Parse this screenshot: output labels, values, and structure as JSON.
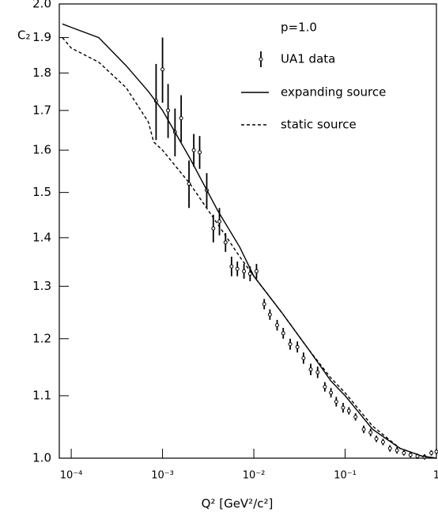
{
  "chart_data": {
    "type": "line",
    "annotation": "p=1.0",
    "ylabel": "C₂",
    "xlabel": "Q² [GeV²/c²]",
    "xscale": "log",
    "yscale": "log",
    "xlim": [
      7.4e-05,
      1
    ],
    "ylim": [
      1,
      2
    ],
    "xticks": [
      {
        "value": 0.0001,
        "label": "10⁻⁴"
      },
      {
        "value": 0.001,
        "label": "10⁻³"
      },
      {
        "value": 0.01,
        "label": "10⁻²"
      },
      {
        "value": 0.1,
        "label": "10⁻¹"
      },
      1
    ],
    "yticks": [
      {
        "value": 1,
        "label": "1.0"
      },
      1.1,
      1.2,
      1.3,
      1.4,
      1.5,
      1.6,
      1.7,
      1.8,
      1.9,
      {
        "value": 2,
        "label": "2.0"
      }
    ],
    "series": [
      {
        "name": "UA1 data",
        "color": "#000000",
        "marker": "circle",
        "x": [
          0.00085,
          0.001,
          0.00115,
          0.00137,
          0.0016,
          0.00195,
          0.0022,
          0.00255,
          0.00305,
          0.0036,
          0.0042,
          0.0049,
          0.0057,
          0.0066,
          0.0078,
          0.0091,
          0.0107,
          0.013,
          0.015,
          0.018,
          0.021,
          0.025,
          0.03,
          0.035,
          0.042,
          0.05,
          0.06,
          0.07,
          0.08,
          0.095,
          0.11,
          0.13,
          0.16,
          0.19,
          0.22,
          0.26,
          0.31,
          0.37,
          0.44,
          0.52,
          0.62,
          0.74,
          0.88,
          1.0
        ],
        "values": [
          1.725,
          1.81,
          1.7,
          1.645,
          1.68,
          1.52,
          1.6,
          1.595,
          1.505,
          1.42,
          1.435,
          1.39,
          1.34,
          1.335,
          1.33,
          1.325,
          1.33,
          1.265,
          1.245,
          1.225,
          1.21,
          1.19,
          1.185,
          1.165,
          1.145,
          1.14,
          1.115,
          1.105,
          1.09,
          1.08,
          1.075,
          1.065,
          1.045,
          1.04,
          1.03,
          1.025,
          1.015,
          1.012,
          1.008,
          1.005,
          1.003,
          1.002,
          1.008,
          1.01
        ],
        "errors": [
          0.1,
          0.09,
          0.07,
          0.06,
          0.06,
          0.055,
          0.04,
          0.04,
          0.04,
          0.03,
          0.03,
          0.02,
          0.02,
          0.015,
          0.015,
          0.015,
          0.015,
          0.01,
          0.01,
          0.01,
          0.01,
          0.01,
          0.01,
          0.01,
          0.01,
          0.01,
          0.008,
          0.008,
          0.008,
          0.008,
          0.006,
          0.006,
          0.006,
          0.006,
          0.005,
          0.005,
          0.005,
          0.005,
          0.004,
          0.004,
          0.004,
          0.004,
          0.004,
          0.004
        ]
      },
      {
        "name": "expanding source",
        "color": "#000000",
        "line_style": "solid",
        "x": [
          8e-05,
          0.0001,
          0.0002,
          0.0004,
          0.0007,
          0.001,
          0.002,
          0.004,
          0.007,
          0.01,
          0.02,
          0.04,
          0.07,
          0.1,
          0.2,
          0.4,
          0.7,
          1
        ],
        "values": [
          1.94,
          1.93,
          1.9,
          1.82,
          1.75,
          1.7,
          1.58,
          1.46,
          1.38,
          1.32,
          1.25,
          1.18,
          1.125,
          1.1,
          1.045,
          1.015,
          1.003,
          1.0
        ]
      },
      {
        "name": "static source",
        "color": "#000000",
        "line_style": "dashed",
        "x": [
          8e-05,
          0.0001,
          0.0002,
          0.0004,
          0.0007,
          0.0008,
          0.001,
          0.002,
          0.004,
          0.007,
          0.01,
          0.02,
          0.04,
          0.07,
          0.1,
          0.2,
          0.4,
          0.7,
          1
        ],
        "values": [
          1.9,
          1.87,
          1.83,
          1.76,
          1.67,
          1.62,
          1.6,
          1.52,
          1.43,
          1.36,
          1.32,
          1.25,
          1.18,
          1.13,
          1.105,
          1.05,
          1.015,
          1.003,
          1.0
        ]
      }
    ]
  }
}
